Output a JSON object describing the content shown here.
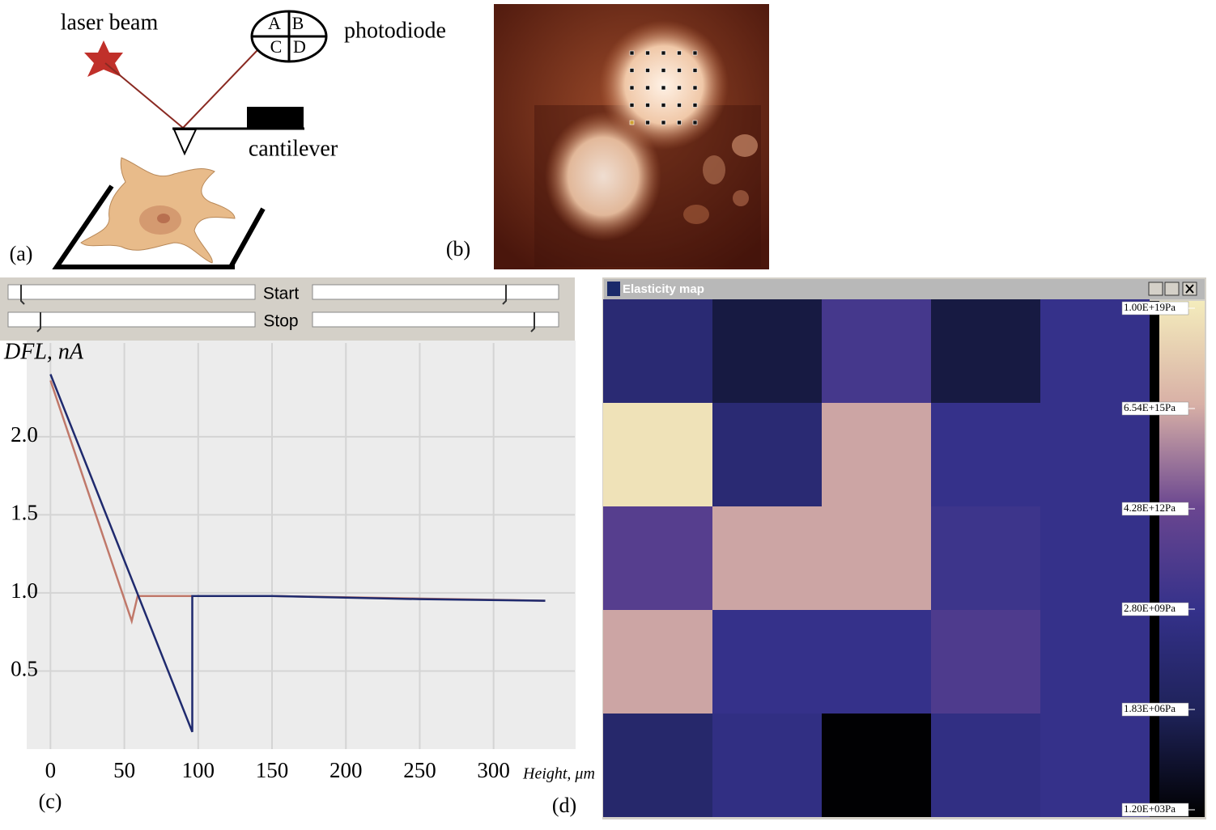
{
  "panel_a": {
    "label": "(a)",
    "laser": "laser beam",
    "photodiode": "photodiode",
    "quadrants": [
      "A",
      "B",
      "C",
      "D"
    ],
    "cantilever": "cantilever"
  },
  "panel_b": {
    "label": "(b)"
  },
  "panel_c": {
    "label": "(c)",
    "controls": {
      "start": "Start",
      "stop": "Stop"
    }
  },
  "panel_d": {
    "label": "(d)",
    "window_title": "Elasticity map"
  },
  "chart_data": [
    {
      "type": "line",
      "y_label": "DFL, nA",
      "x_label": "Height, μm",
      "xlim": [
        -15,
        355
      ],
      "ylim": [
        0,
        2.6
      ],
      "xticks": [
        0,
        50,
        100,
        150,
        200,
        250,
        300
      ],
      "yticks": [
        0.5,
        {
          "value": 1,
          "label": "1.0"
        },
        1.5,
        {
          "value": 2,
          "label": "2.0"
        }
      ],
      "grid": true,
      "series": [
        {
          "color": "#c0786a",
          "x": [
            0,
            55,
            59,
            150,
            335
          ],
          "values": [
            2.36,
            0.82,
            0.98,
            0.98,
            0.95
          ]
        },
        {
          "color": "#1f2a6e",
          "x": [
            0,
            96,
            96,
            150,
            200,
            250,
            335
          ],
          "values": [
            2.4,
            0.11,
            0.98,
            0.98,
            0.97,
            0.96,
            0.95
          ]
        }
      ]
    },
    {
      "type": "heatmap",
      "log_scale": true,
      "values": [
        [
          100000000,
          300000,
          30000000000,
          300000,
          3000000000
        ],
        [
          3e+18,
          100000000,
          3000000000000000.0,
          3000000000,
          3000000000
        ],
        [
          300000000000,
          3000000000000000.0,
          3000000000000000.0,
          10000000000,
          3000000000
        ],
        [
          3000000000000000.0,
          3000000000,
          3000000000,
          100000000000,
          3000000000
        ],
        [
          30000000,
          1000000000,
          1600,
          1000000000,
          3000000000
        ]
      ],
      "clim": [
        1200,
        1e+19
      ],
      "cticks": [
        {
          "value": 1e+19,
          "label": "1.00E+19Pa"
        },
        {
          "value": 6540000000000000.0,
          "label": "6.54E+15Pa"
        },
        {
          "value": 4280000000000.0,
          "label": "4.28E+12Pa"
        },
        {
          "value": 2800000000.0,
          "label": "2.80E+09Pa"
        },
        {
          "value": 1830000,
          "label": "1.83E+06Pa"
        },
        {
          "value": 1200,
          "label": "1.20E+03Pa"
        }
      ],
      "colormap": [
        "#000000",
        "#1e2258",
        "#34318a",
        "#6a4690",
        "#d8b0a6",
        "#f4ecbc"
      ]
    }
  ]
}
